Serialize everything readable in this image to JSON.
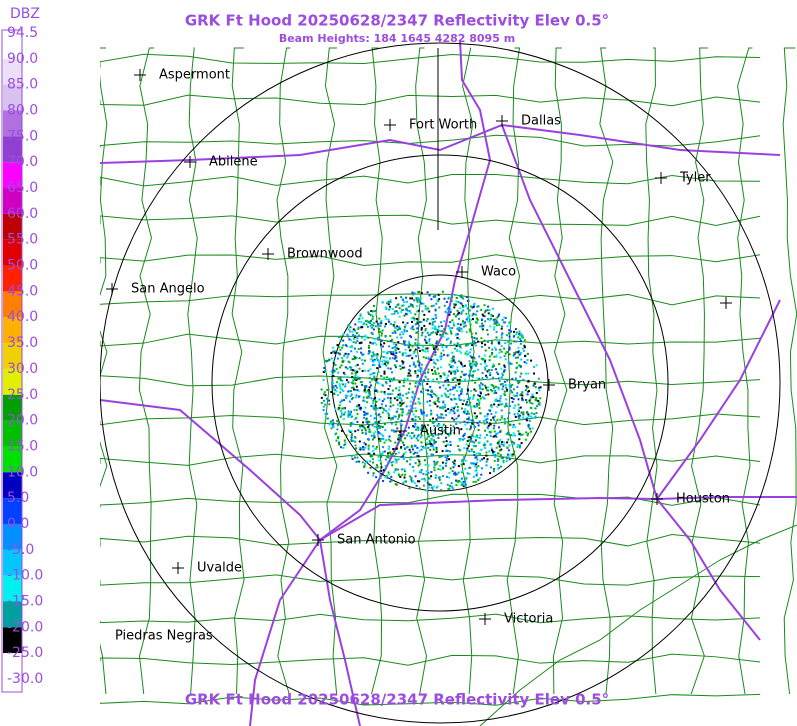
{
  "header": {
    "title": "GRK Ft Hood 20250628/2347 Reflectivity Elev 0.5°",
    "subtitle": "Beam Heights: 184 1645 4282 8095 m"
  },
  "footer": "GRK Ft Hood 20250628/2347 Reflectivity Elev 0.5°",
  "legend": {
    "unit": "DBZ",
    "labels": [
      "94.5",
      "90.0",
      "85.0",
      "80.0",
      "75.0",
      "70.0",
      "65.0",
      "60.0",
      "55.0",
      "50.0",
      "45.0",
      "40.0",
      "35.0",
      "30.0",
      "25.0",
      "20.0",
      "15.0",
      "10.0",
      "5.0",
      "0.0",
      "-5.0",
      "-10.0",
      "-15.0",
      "-20.0",
      "-25.0",
      "-30.0"
    ],
    "colors": [
      "#ffffff",
      "#ece0f8",
      "#d8c0f0",
      "#b070e0",
      "#9040d0",
      "#ff00ff",
      "#d000c0",
      "#c00000",
      "#e00000",
      "#ff2000",
      "#ff8000",
      "#ffb000",
      "#f0d000",
      "#e0f000",
      "#00a000",
      "#00c000",
      "#00e000",
      "#0000c0",
      "#0040ff",
      "#0090ff",
      "#00c8ff",
      "#00f0f0",
      "#00a0a0",
      "#000000",
      "#ffffff"
    ]
  },
  "cities": [
    "Aspermont",
    "Fort Worth",
    "Dallas",
    "Abilene",
    "Tyler",
    "Brownwood",
    "Waco",
    "San Angelo",
    "Bryan",
    "Austin",
    "Houston",
    "San Antonio",
    "Uvalde",
    "Victoria",
    "Piedras Negras"
  ]
}
